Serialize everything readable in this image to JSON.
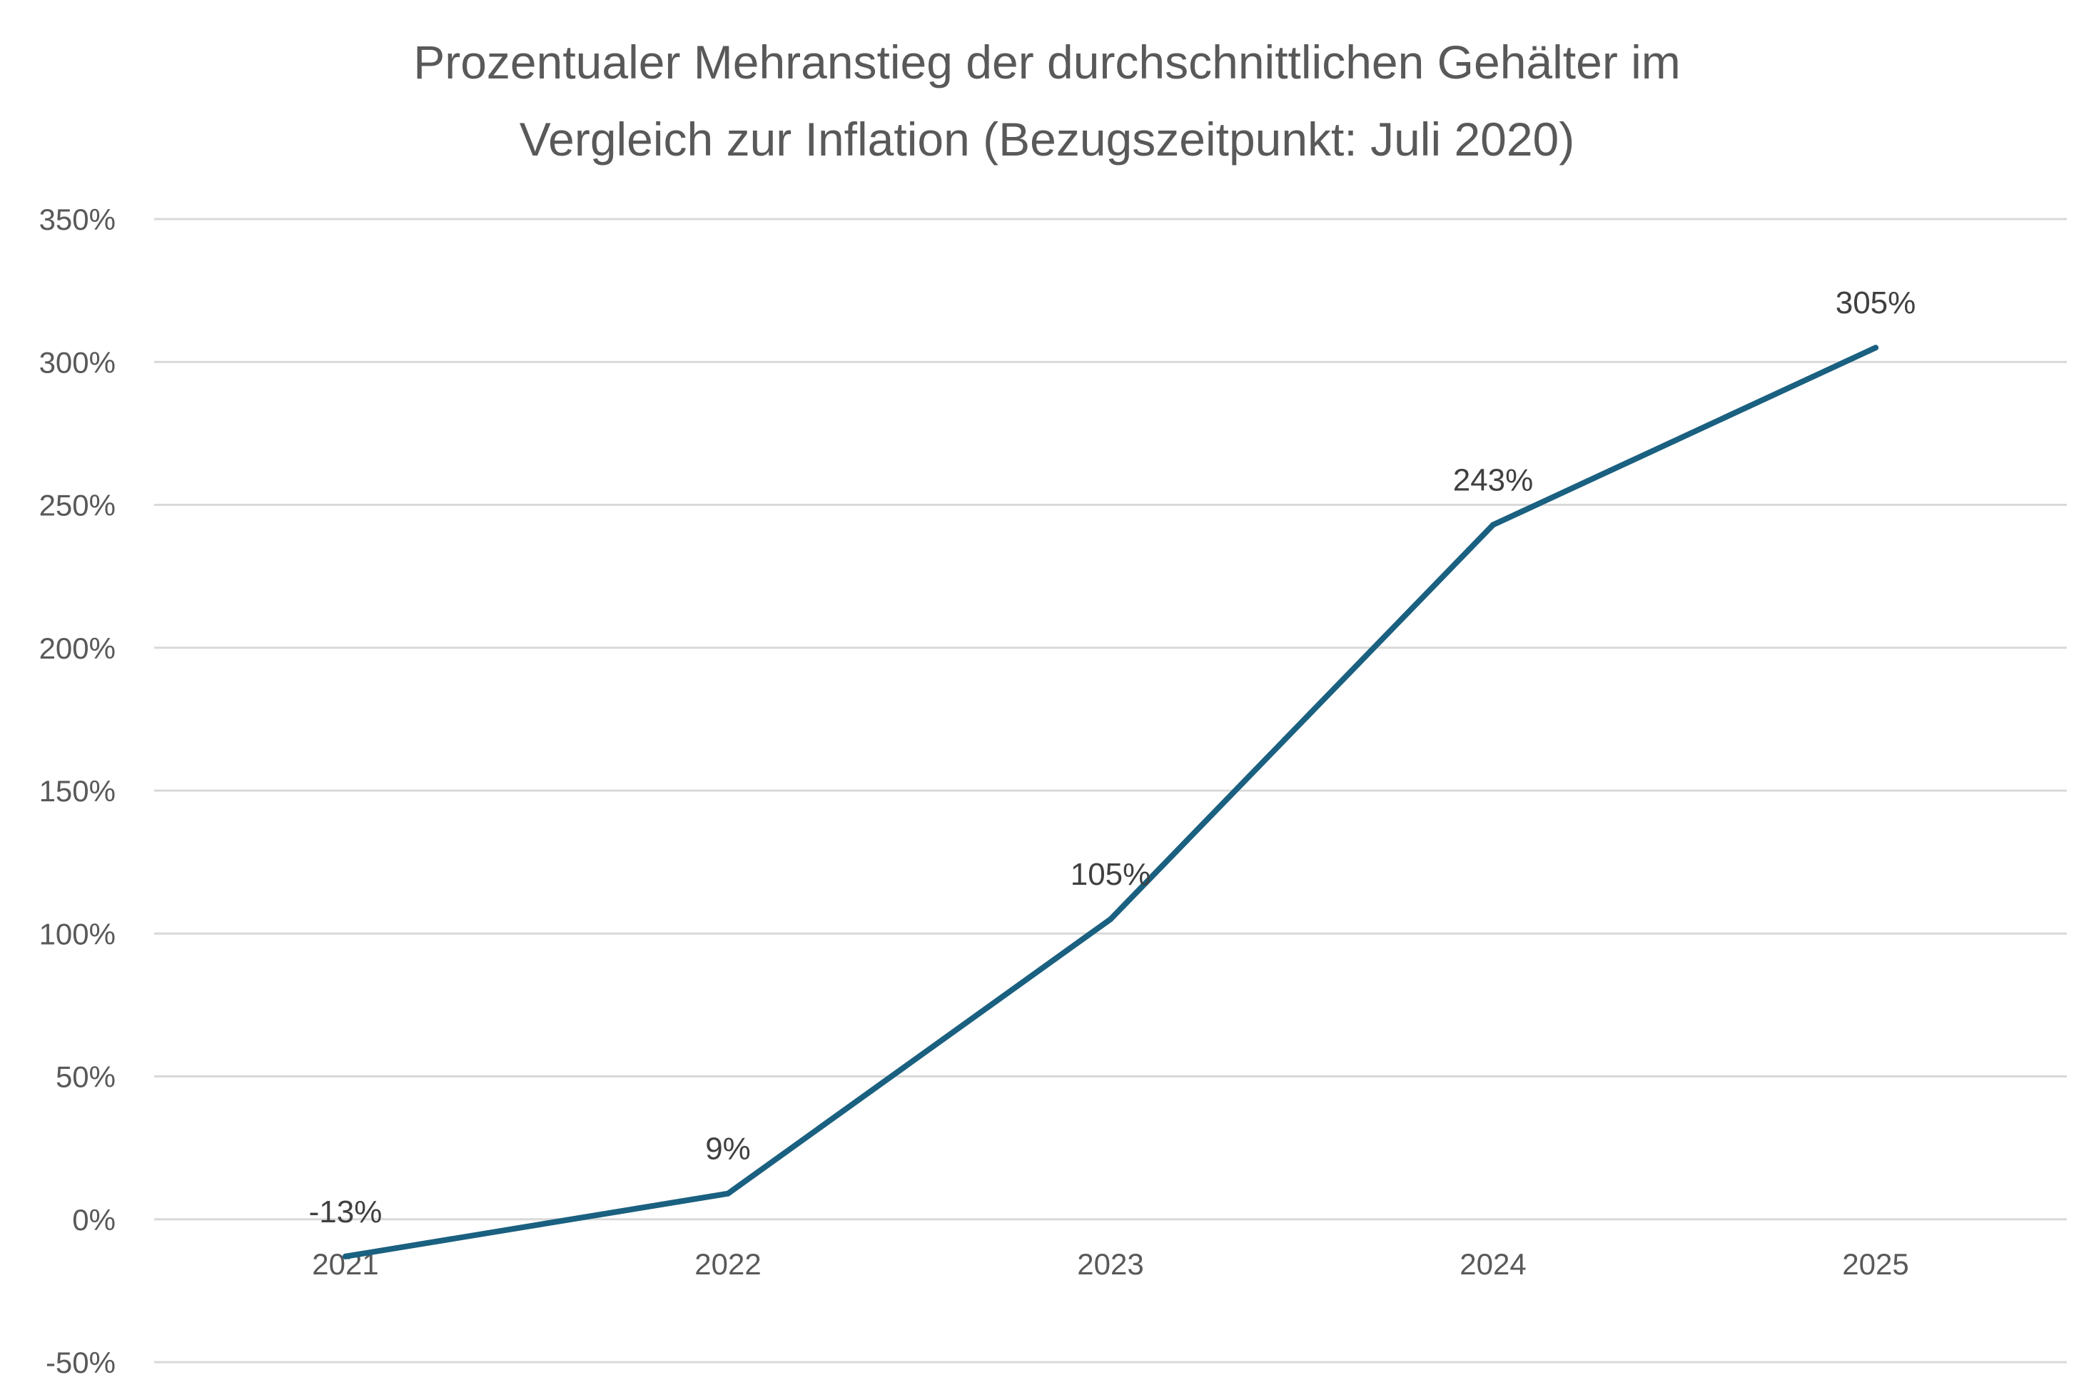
{
  "chart_data": {
    "type": "line",
    "title": [
      "Prozentualer Mehranstieg der durchschnittlichen Gehälter im",
      "Vergleich zur Inflation (Bezugszeitpunkt: Juli 2020)"
    ],
    "categories": [
      "2021",
      "2022",
      "2023",
      "2024",
      "2025"
    ],
    "series": [
      {
        "values": [
          -13,
          9,
          105,
          243,
          305
        ],
        "labels": [
          "-13%",
          "9%",
          "105%",
          "243%",
          "305%"
        ],
        "color": "#1a6080"
      }
    ],
    "ylim": [
      -50,
      350
    ],
    "yticks": [
      -50,
      0,
      50,
      100,
      150,
      200,
      250,
      300,
      350
    ],
    "ytick_labels": [
      "-50%",
      "0%",
      "50%",
      "100%",
      "150%",
      "200%",
      "250%",
      "300%",
      "350%"
    ],
    "grid": true,
    "legend": "none",
    "xlabel": "",
    "ylabel": ""
  }
}
